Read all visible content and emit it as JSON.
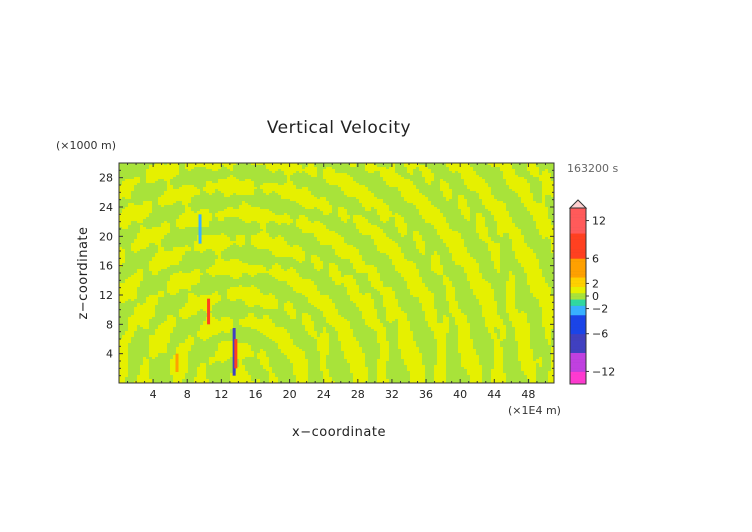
{
  "chart_data": {
    "type": "heatmap",
    "title": "Vertical Velocity",
    "xlabel": "x−coordinate",
    "ylabel": "z−coordinate",
    "x_unit": "(×1E4 m)",
    "y_unit": "(×1000 m)",
    "time_label": "163200 s",
    "xlim": [
      0,
      51
    ],
    "ylim": [
      0,
      30
    ],
    "x_ticks": [
      4,
      8,
      12,
      16,
      20,
      24,
      28,
      32,
      36,
      40,
      44,
      48
    ],
    "y_ticks": [
      4,
      8,
      12,
      16,
      20,
      24,
      28
    ],
    "colorbar": {
      "range": [
        -14,
        14
      ],
      "tick_values": [
        12,
        6,
        2,
        0,
        -2,
        -6,
        -12
      ],
      "tick_labels": [
        "12",
        "6",
        "2",
        "0",
        "−2",
        "−6",
        "−12"
      ],
      "extend": "max"
    },
    "dominant_colors": [
      "#e6f000",
      "#a8e33a"
    ],
    "features": [
      {
        "x": 6.8,
        "z_range": [
          1.5,
          4.0
        ],
        "value": 5
      },
      {
        "x": 10.5,
        "z_range": [
          8.0,
          11.5
        ],
        "value": 6
      },
      {
        "x": 13.5,
        "z_range": [
          1.0,
          7.5
        ],
        "value": -8
      },
      {
        "x": 13.7,
        "z_range": [
          2.0,
          6.0
        ],
        "value": 7
      },
      {
        "x": 9.5,
        "z_range": [
          19.0,
          23.0
        ],
        "value": -3
      }
    ]
  }
}
